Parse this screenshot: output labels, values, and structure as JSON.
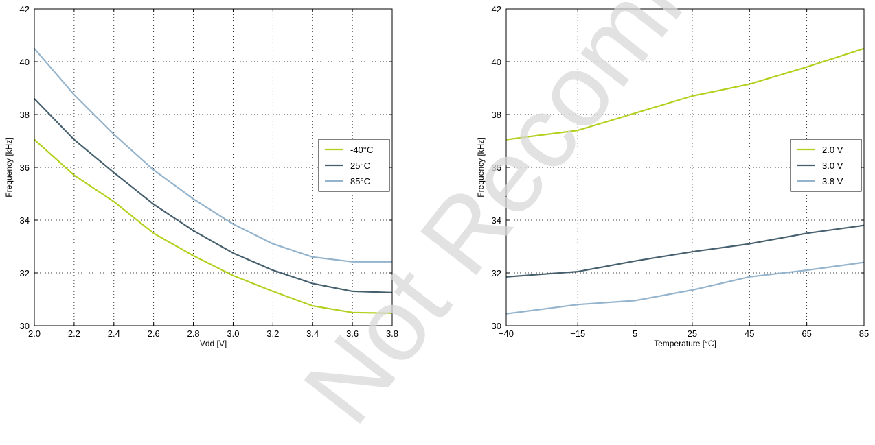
{
  "chart_data": [
    {
      "type": "line",
      "xlabel": "Vdd [V]",
      "ylabel": "Frequency [kHz]",
      "xlim": [
        2.0,
        3.8
      ],
      "ylim": [
        30,
        42
      ],
      "xticks": [
        2.0,
        2.2,
        2.4,
        2.6,
        2.8,
        3.0,
        3.2,
        3.4,
        3.6,
        3.8
      ],
      "xtick_labels": [
        "2.0",
        "2.2",
        "2.4",
        "2.6",
        "2.8",
        "3.0",
        "3.2",
        "3.4",
        "3.6",
        "3.8"
      ],
      "yticks": [
        30,
        32,
        34,
        36,
        38,
        40,
        42
      ],
      "ytick_labels": [
        "30",
        "32",
        "34",
        "36",
        "38",
        "40",
        "42"
      ],
      "grid": true,
      "legend_position": "center-right",
      "x": [
        2.0,
        2.2,
        2.4,
        2.6,
        2.8,
        3.0,
        3.2,
        3.4,
        3.6,
        3.8
      ],
      "series": [
        {
          "name": "-40°C",
          "color": "#b5cf1f",
          "values": [
            37.05,
            35.7,
            34.7,
            33.5,
            32.65,
            31.9,
            31.3,
            30.75,
            30.5,
            30.47
          ]
        },
        {
          "name": "25°C",
          "color": "#46606e",
          "values": [
            38.6,
            37.05,
            35.8,
            34.6,
            33.6,
            32.75,
            32.1,
            31.6,
            31.3,
            31.25
          ]
        },
        {
          "name": "85°C",
          "color": "#94b3cc",
          "values": [
            40.5,
            38.75,
            37.25,
            35.9,
            34.8,
            33.85,
            33.1,
            32.6,
            32.42,
            32.42
          ]
        }
      ]
    },
    {
      "type": "line",
      "xlabel": "Temperature [°C]",
      "ylabel": "Frequency [kHz]",
      "xlim": [
        -40,
        85
      ],
      "ylim": [
        30,
        42
      ],
      "xticks": [
        -40,
        -15,
        5,
        25,
        45,
        65,
        85
      ],
      "xtick_labels": [
        "−40",
        "−15",
        "5",
        "25",
        "45",
        "65",
        "85"
      ],
      "yticks": [
        30,
        32,
        34,
        36,
        38,
        40,
        42
      ],
      "ytick_labels": [
        "30",
        "32",
        "34",
        "36",
        "38",
        "40",
        "42"
      ],
      "grid": true,
      "legend_position": "center-right",
      "x": [
        -40,
        -15,
        5,
        25,
        45,
        65,
        85
      ],
      "series": [
        {
          "name": "2.0 V",
          "color": "#b5cf1f",
          "values": [
            37.05,
            37.4,
            38.05,
            38.7,
            39.15,
            39.8,
            40.5
          ]
        },
        {
          "name": "3.0 V",
          "color": "#46606e",
          "values": [
            31.85,
            32.05,
            32.45,
            32.8,
            33.1,
            33.5,
            33.8
          ]
        },
        {
          "name": "3.8 V",
          "color": "#94b3cc",
          "values": [
            30.45,
            30.8,
            30.95,
            31.35,
            31.85,
            32.1,
            32.4
          ]
        }
      ]
    }
  ],
  "watermark": "Not Recommended for New"
}
